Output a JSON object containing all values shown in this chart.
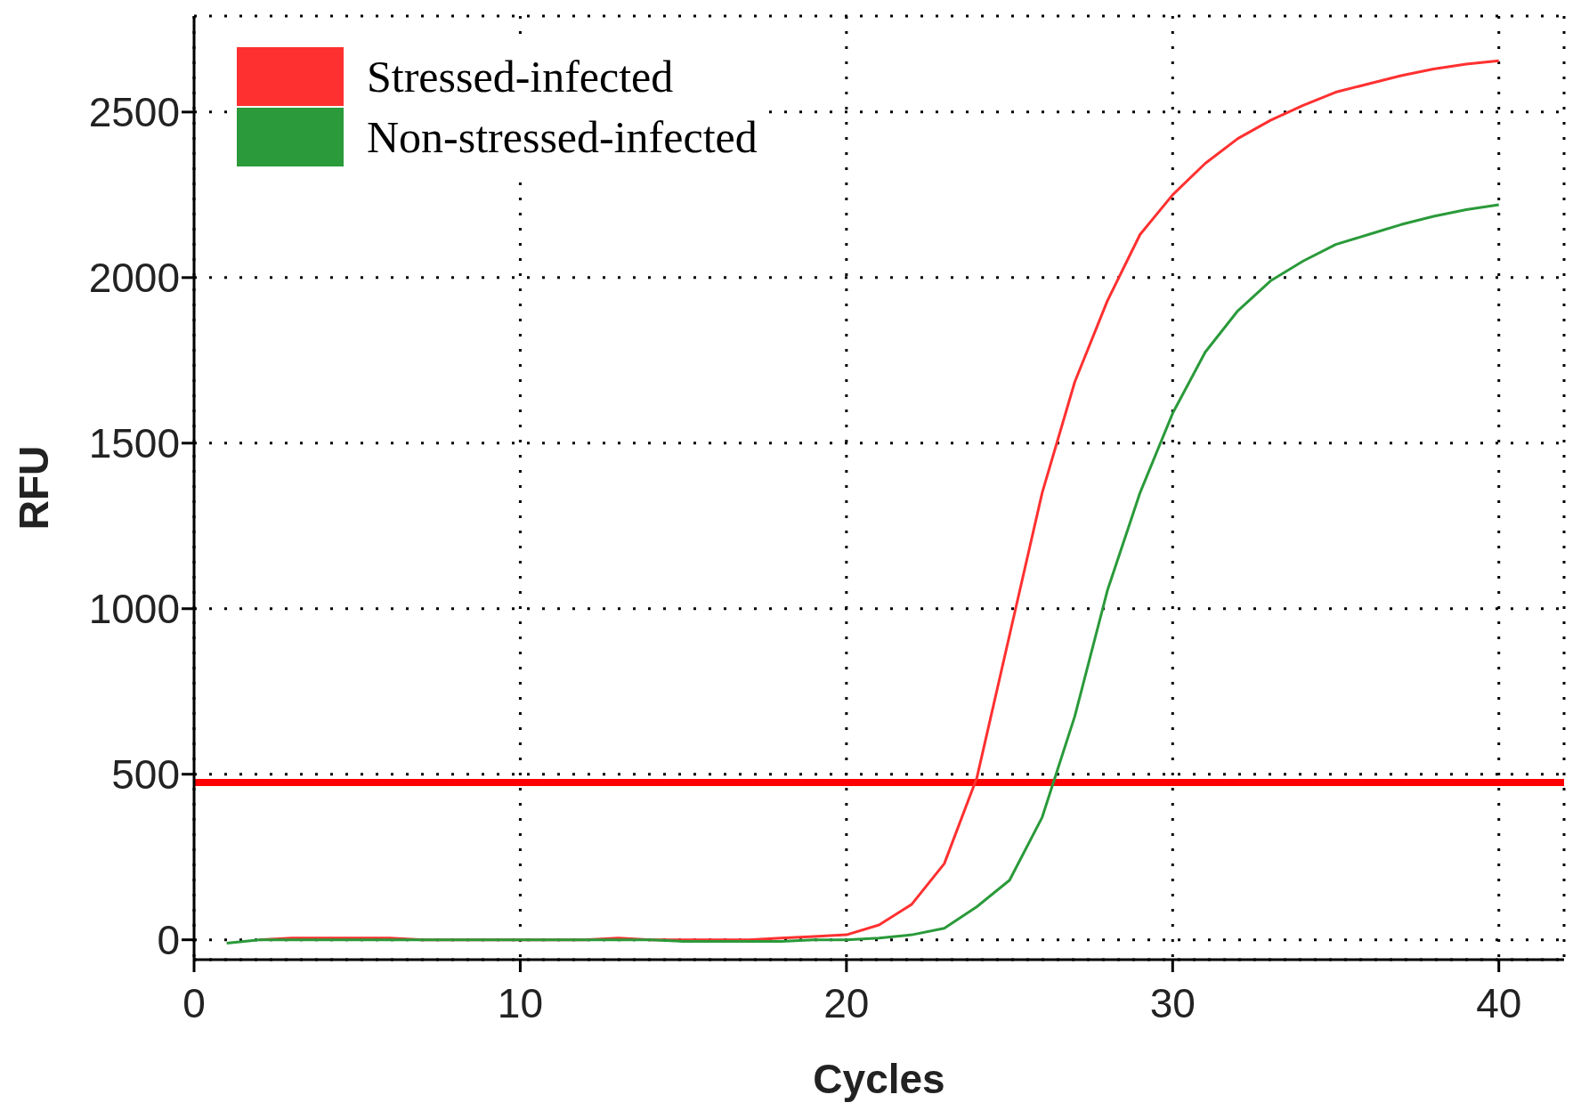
{
  "chart_data": {
    "type": "line",
    "xlabel": "Cycles",
    "ylabel": "RFU",
    "x": [
      1,
      2,
      3,
      4,
      5,
      6,
      7,
      8,
      9,
      10,
      11,
      12,
      13,
      14,
      15,
      16,
      17,
      18,
      19,
      20,
      21,
      22,
      23,
      24,
      25,
      26,
      27,
      28,
      29,
      30,
      31,
      32,
      33,
      34,
      35,
      36,
      37,
      38,
      39,
      40
    ],
    "series": [
      {
        "name": "Stressed-infected",
        "color": "#ff3030",
        "values": [
          null,
          0,
          5,
          5,
          5,
          5,
          0,
          0,
          0,
          0,
          0,
          0,
          5,
          0,
          0,
          0,
          0,
          5,
          10,
          15,
          45,
          107,
          230,
          490,
          920,
          1350,
          1685,
          1930,
          2130,
          2250,
          2345,
          2420,
          2475,
          2520,
          2560,
          2585,
          2610,
          2630,
          2645,
          2655
        ]
      },
      {
        "name": "Non-stressed-infected",
        "color": "#2a9a3a",
        "values": [
          -10,
          0,
          0,
          0,
          0,
          0,
          0,
          0,
          0,
          0,
          0,
          0,
          0,
          0,
          -5,
          -5,
          -5,
          -5,
          0,
          0,
          5,
          15,
          35,
          100,
          180,
          370,
          675,
          1055,
          1350,
          1590,
          1775,
          1900,
          1990,
          2050,
          2100,
          2130,
          2160,
          2185,
          2205,
          2220
        ]
      }
    ],
    "ref_lines": [
      {
        "axis": "y",
        "value": 475,
        "color": "#ff0000"
      }
    ],
    "xlim": [
      0,
      42
    ],
    "xticks": [
      0,
      10,
      20,
      30,
      40
    ],
    "ylim": [
      -60,
      2790
    ],
    "yticks": [
      0,
      500,
      1000,
      1500,
      2000,
      2500
    ],
    "grid": true,
    "legend": "top left",
    "marker": "none",
    "line_style": "solid"
  }
}
